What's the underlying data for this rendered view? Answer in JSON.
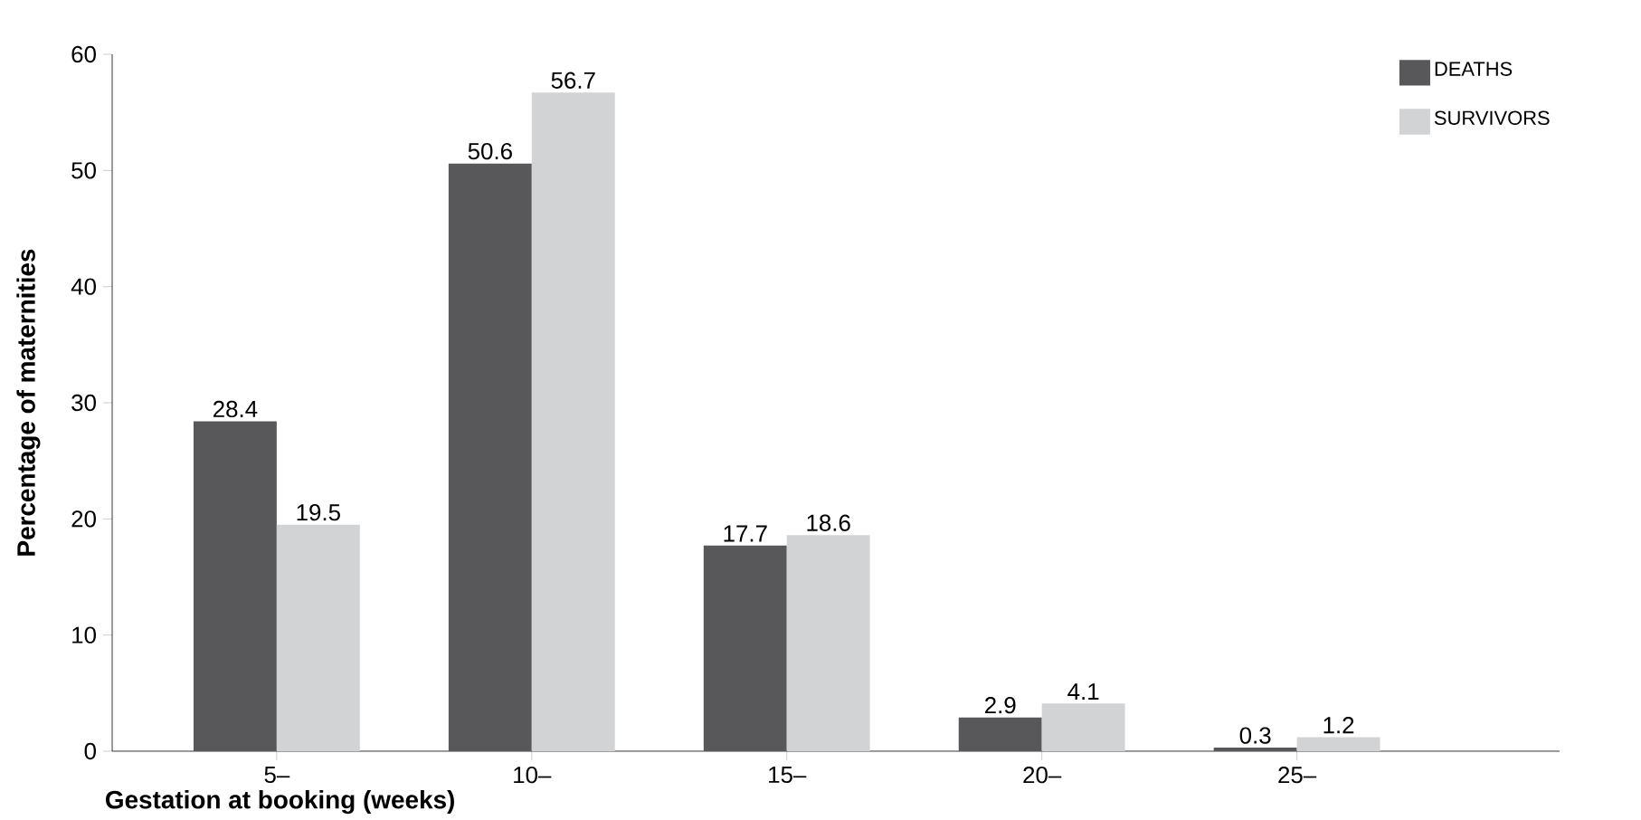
{
  "chart_data": {
    "type": "bar",
    "xlabel": "Gestation at booking (weeks)",
    "ylabel": "Percentage of maternities",
    "categories": [
      "5–",
      "10–",
      "15–",
      "20–",
      "25–"
    ],
    "series": [
      {
        "name": "DEATHS",
        "color": "#58585b",
        "values": [
          28.4,
          50.6,
          17.7,
          2.9,
          0.3
        ]
      },
      {
        "name": "SURVIVORS",
        "color": "#d1d3d4",
        "values": [
          19.5,
          56.7,
          18.6,
          4.1,
          1.2
        ]
      }
    ],
    "ylim": [
      0,
      60
    ],
    "yticks": [
      0,
      10,
      20,
      30,
      40,
      50,
      60
    ],
    "data_labels": true,
    "legend": "top right",
    "grid": false
  }
}
